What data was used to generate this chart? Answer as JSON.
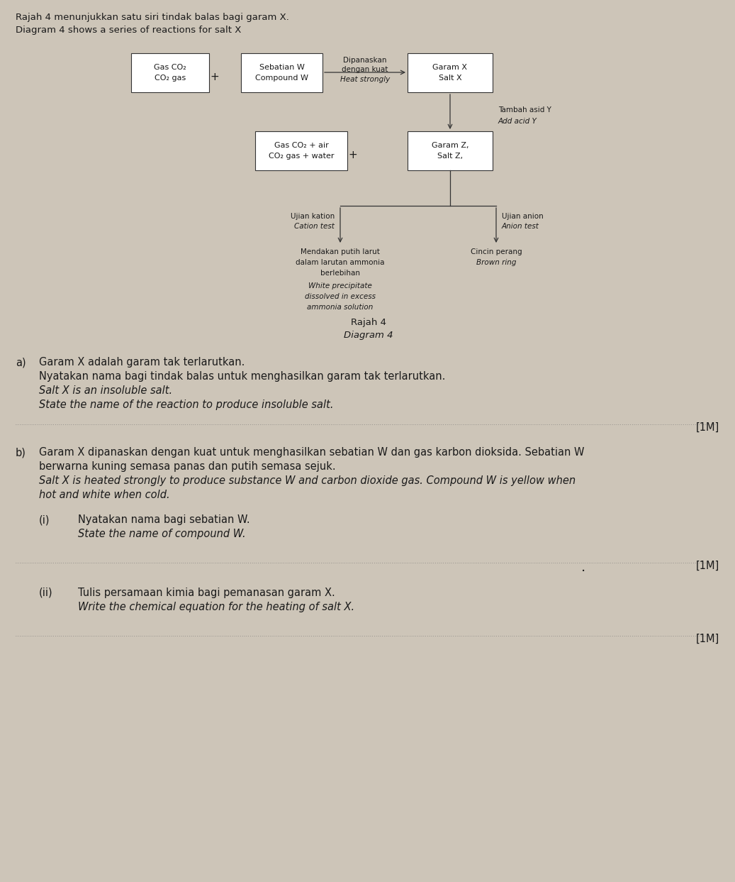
{
  "bg_color": "#cdc5b8",
  "title_line1": "Rajah 4 menunjukkan satu siri tindak balas bagi garam X.",
  "title_line2": "Diagram 4 shows a series of reactions for salt X",
  "diagram_title1": "Rajah 4",
  "diagram_title2": "Diagram 4",
  "box_garam_x": {
    "label1": "Garam X",
    "label2": "Salt X"
  },
  "box_sebatian_w": {
    "label1": "Sebatian W",
    "label2": "Compound W"
  },
  "box_gas_co2_1": {
    "label1": "Gas CO₂",
    "label2": "CO₂ gas"
  },
  "box_garam_z": {
    "label1": "Garam Z,",
    "label2": "Salt Z,"
  },
  "box_gas_co2_air": {
    "label1": "Gas CO₂ + air",
    "label2": "CO₂ gas + water"
  },
  "arrow_heat_label1": "Dipanaskan",
  "arrow_heat_label2": "dengan kuat",
  "arrow_heat_label3": "Heat strongly",
  "arrow_add_acid1": "Tambah asid Y",
  "arrow_add_acid2": "Add acid Y",
  "ujian_kation1": "Ujian kation",
  "ujian_kation2": "Cation test",
  "ujian_anion1": "Ujian anion",
  "ujian_anion2": "Anion test",
  "mendakan1": "Mendakan putih larut",
  "mendakan2": "dalam larutan ammonia",
  "mendakan3": "berlebihan",
  "mendakan4": "White precipitate",
  "mendakan5": "dissolved in excess",
  "mendakan6": "ammonia solution",
  "cincin1": "Cincin perang",
  "cincin2": "Brown ring",
  "section_a_label": "a)",
  "section_a_line1": "Garam X adalah garam tak terlarutkan.",
  "section_a_line2": "Nyatakan nama bagi tindak balas untuk menghasilkan garam tak terlarutkan.",
  "section_a_line3": "Salt X is an insoluble salt.",
  "section_a_line4": "State the name of the reaction to produce insoluble salt.",
  "section_a_mark": "[1M]",
  "section_b_label": "b)",
  "section_b_line1": "Garam X dipanaskan dengan kuat untuk menghasilkan sebatian W dan gas karbon dioksida. Sebatian W",
  "section_b_line2": "berwarna kuning semasa panas dan putih semasa sejuk.",
  "section_b_line3": "Salt X is heated strongly to produce substance W and carbon dioxide gas. Compound W is yellow when",
  "section_b_line4": "hot and white when cold.",
  "section_bi_label": "(i)",
  "section_bi_line1": "Nyatakan nama bagi sebatian W.",
  "section_bi_line2": "State the name of compound W.",
  "section_bi_mark": "[1M]",
  "section_bii_label": "(ii)",
  "section_bii_line1": "Tulis persamaan kimia bagi pemanasan garam X.",
  "section_bii_line2": "Write the chemical equation for the heating of salt X.",
  "section_bii_mark": "[1M]"
}
